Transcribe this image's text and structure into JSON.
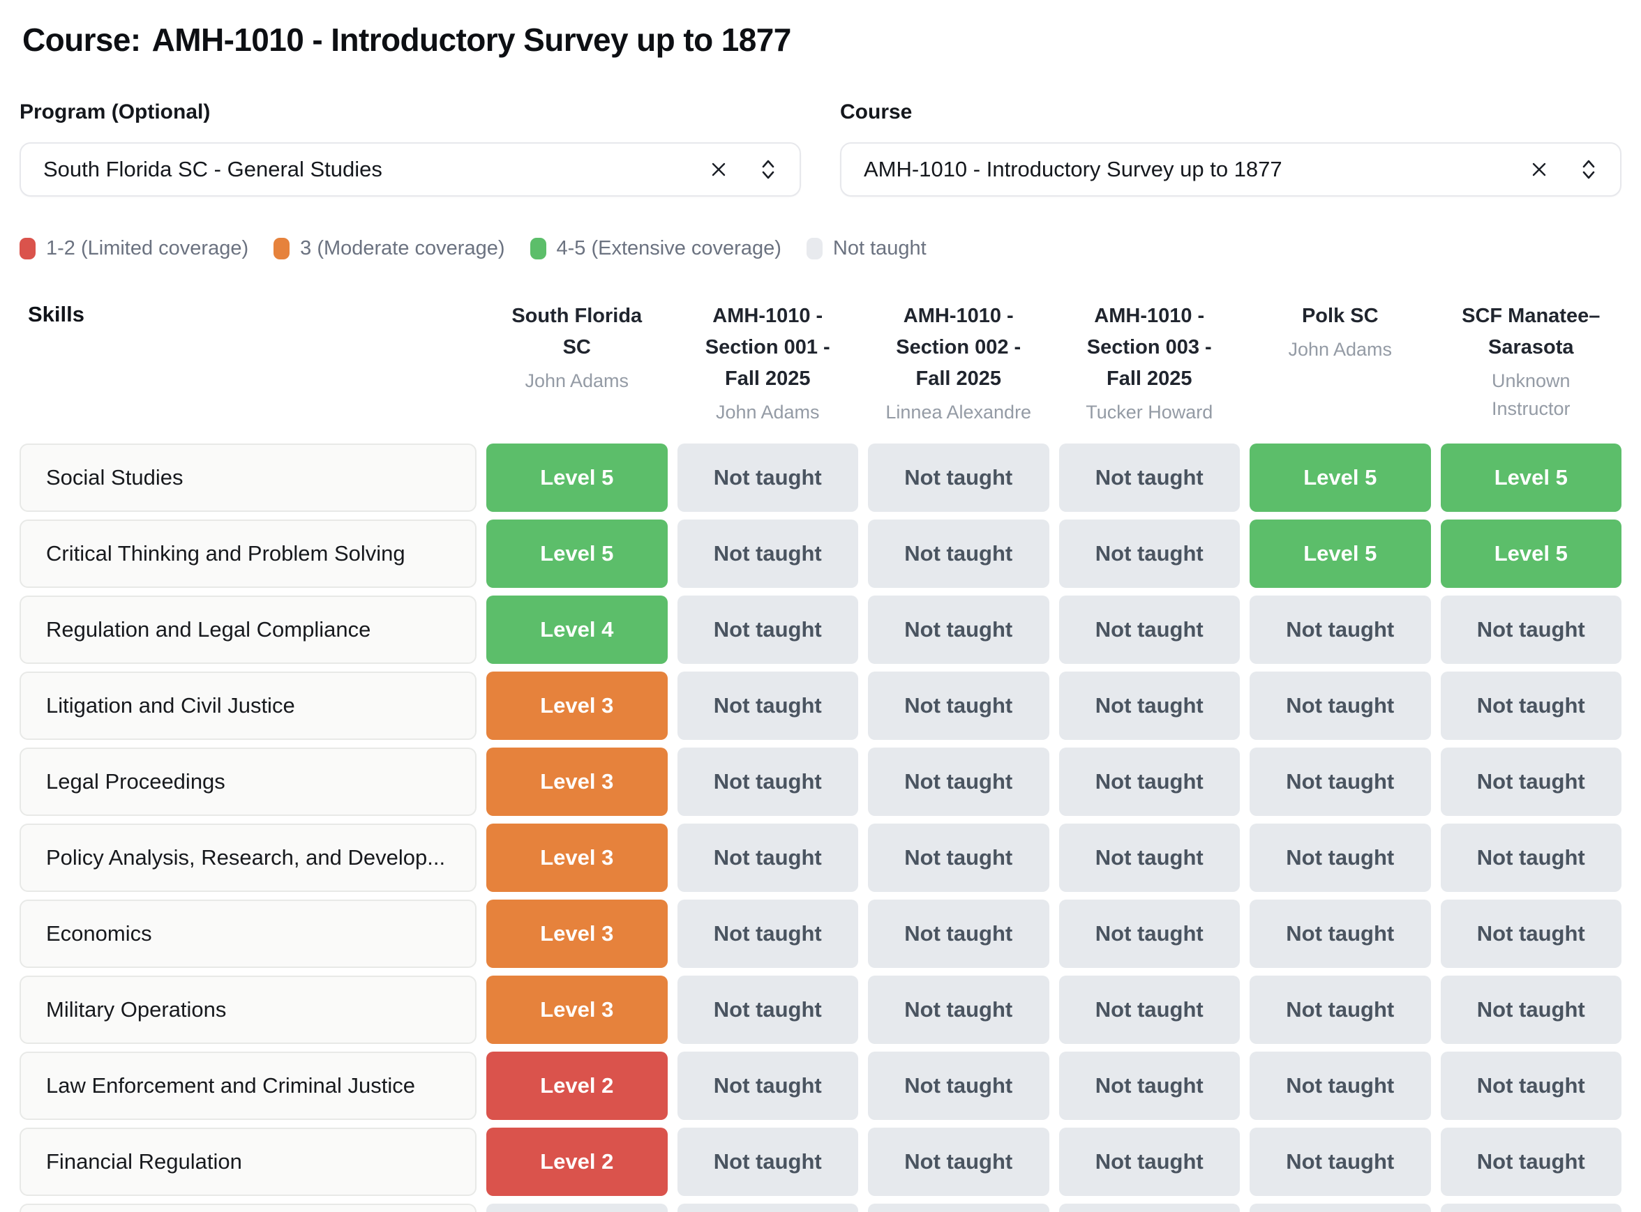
{
  "header": {
    "title_prefix": "Course:",
    "title_course": "AMH-1010 - Introductory Survey up to 1877"
  },
  "filters": {
    "program": {
      "label": "Program (Optional)",
      "value": "South Florida SC - General Studies"
    },
    "course": {
      "label": "Course",
      "value": "AMH-1010 - Introductory Survey up to 1877"
    }
  },
  "legend": {
    "items": [
      {
        "id": "limited",
        "label": "1-2 (Limited coverage)",
        "color": "#da534c"
      },
      {
        "id": "moderate",
        "label": "3 (Moderate coverage)",
        "color": "#e6823c"
      },
      {
        "id": "extensive",
        "label": "4-5 (Extensive coverage)",
        "color": "#5cbe6a"
      },
      {
        "id": "none",
        "label": "Not taught",
        "color": "#e8eaee"
      }
    ]
  },
  "colors": {
    "extensive": "#5cbe6a",
    "moderate": "#e6823c",
    "limited": "#da534c",
    "not_taught_bg": "#e6e9ed",
    "not_taught_text": "#4a5460"
  },
  "table": {
    "skills_header": "Skills",
    "columns": [
      {
        "name": "South Florida SC",
        "instructor": "John Adams"
      },
      {
        "name": "AMH-1010 - Section 001 - Fall 2025",
        "instructor": "John Adams"
      },
      {
        "name": "AMH-1010 - Section 002 - Fall 2025",
        "instructor": "Linnea Alexandre"
      },
      {
        "name": "AMH-1010 - Section 003 - Fall 2025",
        "instructor": "Tucker Howard"
      },
      {
        "name": "Polk SC",
        "instructor": "John Adams"
      },
      {
        "name": "SCF Manatee–Sarasota",
        "instructor": "Unknown Instructor"
      }
    ],
    "rows": [
      {
        "skill": "Social Studies",
        "cells": [
          {
            "label": "Level 5",
            "coverage": "extensive"
          },
          {
            "label": "Not taught",
            "coverage": "none"
          },
          {
            "label": "Not taught",
            "coverage": "none"
          },
          {
            "label": "Not taught",
            "coverage": "none"
          },
          {
            "label": "Level 5",
            "coverage": "extensive"
          },
          {
            "label": "Level 5",
            "coverage": "extensive"
          }
        ]
      },
      {
        "skill": "Critical Thinking and Problem Solving",
        "cells": [
          {
            "label": "Level 5",
            "coverage": "extensive"
          },
          {
            "label": "Not taught",
            "coverage": "none"
          },
          {
            "label": "Not taught",
            "coverage": "none"
          },
          {
            "label": "Not taught",
            "coverage": "none"
          },
          {
            "label": "Level 5",
            "coverage": "extensive"
          },
          {
            "label": "Level 5",
            "coverage": "extensive"
          }
        ]
      },
      {
        "skill": "Regulation and Legal Compliance",
        "cells": [
          {
            "label": "Level 4",
            "coverage": "extensive"
          },
          {
            "label": "Not taught",
            "coverage": "none"
          },
          {
            "label": "Not taught",
            "coverage": "none"
          },
          {
            "label": "Not taught",
            "coverage": "none"
          },
          {
            "label": "Not taught",
            "coverage": "none"
          },
          {
            "label": "Not taught",
            "coverage": "none"
          }
        ]
      },
      {
        "skill": "Litigation and Civil Justice",
        "cells": [
          {
            "label": "Level 3",
            "coverage": "moderate"
          },
          {
            "label": "Not taught",
            "coverage": "none"
          },
          {
            "label": "Not taught",
            "coverage": "none"
          },
          {
            "label": "Not taught",
            "coverage": "none"
          },
          {
            "label": "Not taught",
            "coverage": "none"
          },
          {
            "label": "Not taught",
            "coverage": "none"
          }
        ]
      },
      {
        "skill": "Legal Proceedings",
        "cells": [
          {
            "label": "Level 3",
            "coverage": "moderate"
          },
          {
            "label": "Not taught",
            "coverage": "none"
          },
          {
            "label": "Not taught",
            "coverage": "none"
          },
          {
            "label": "Not taught",
            "coverage": "none"
          },
          {
            "label": "Not taught",
            "coverage": "none"
          },
          {
            "label": "Not taught",
            "coverage": "none"
          }
        ]
      },
      {
        "skill": "Policy Analysis, Research, and Develop...",
        "cells": [
          {
            "label": "Level 3",
            "coverage": "moderate"
          },
          {
            "label": "Not taught",
            "coverage": "none"
          },
          {
            "label": "Not taught",
            "coverage": "none"
          },
          {
            "label": "Not taught",
            "coverage": "none"
          },
          {
            "label": "Not taught",
            "coverage": "none"
          },
          {
            "label": "Not taught",
            "coverage": "none"
          }
        ]
      },
      {
        "skill": "Economics",
        "cells": [
          {
            "label": "Level 3",
            "coverage": "moderate"
          },
          {
            "label": "Not taught",
            "coverage": "none"
          },
          {
            "label": "Not taught",
            "coverage": "none"
          },
          {
            "label": "Not taught",
            "coverage": "none"
          },
          {
            "label": "Not taught",
            "coverage": "none"
          },
          {
            "label": "Not taught",
            "coverage": "none"
          }
        ]
      },
      {
        "skill": "Military Operations",
        "cells": [
          {
            "label": "Level 3",
            "coverage": "moderate"
          },
          {
            "label": "Not taught",
            "coverage": "none"
          },
          {
            "label": "Not taught",
            "coverage": "none"
          },
          {
            "label": "Not taught",
            "coverage": "none"
          },
          {
            "label": "Not taught",
            "coverage": "none"
          },
          {
            "label": "Not taught",
            "coverage": "none"
          }
        ]
      },
      {
        "skill": "Law Enforcement and Criminal Justice",
        "cells": [
          {
            "label": "Level 2",
            "coverage": "limited"
          },
          {
            "label": "Not taught",
            "coverage": "none"
          },
          {
            "label": "Not taught",
            "coverage": "none"
          },
          {
            "label": "Not taught",
            "coverage": "none"
          },
          {
            "label": "Not taught",
            "coverage": "none"
          },
          {
            "label": "Not taught",
            "coverage": "none"
          }
        ]
      },
      {
        "skill": "Financial Regulation",
        "cells": [
          {
            "label": "Level 2",
            "coverage": "limited"
          },
          {
            "label": "Not taught",
            "coverage": "none"
          },
          {
            "label": "Not taught",
            "coverage": "none"
          },
          {
            "label": "Not taught",
            "coverage": "none"
          },
          {
            "label": "Not taught",
            "coverage": "none"
          },
          {
            "label": "Not taught",
            "coverage": "none"
          }
        ]
      },
      {
        "skill": "",
        "partial": true,
        "cells": [
          {
            "label": "",
            "coverage": "none"
          },
          {
            "label": "",
            "coverage": "none"
          },
          {
            "label": "",
            "coverage": "none"
          },
          {
            "label": "",
            "coverage": "none"
          },
          {
            "label": "",
            "coverage": "none"
          },
          {
            "label": "",
            "coverage": "none"
          }
        ]
      }
    ]
  }
}
